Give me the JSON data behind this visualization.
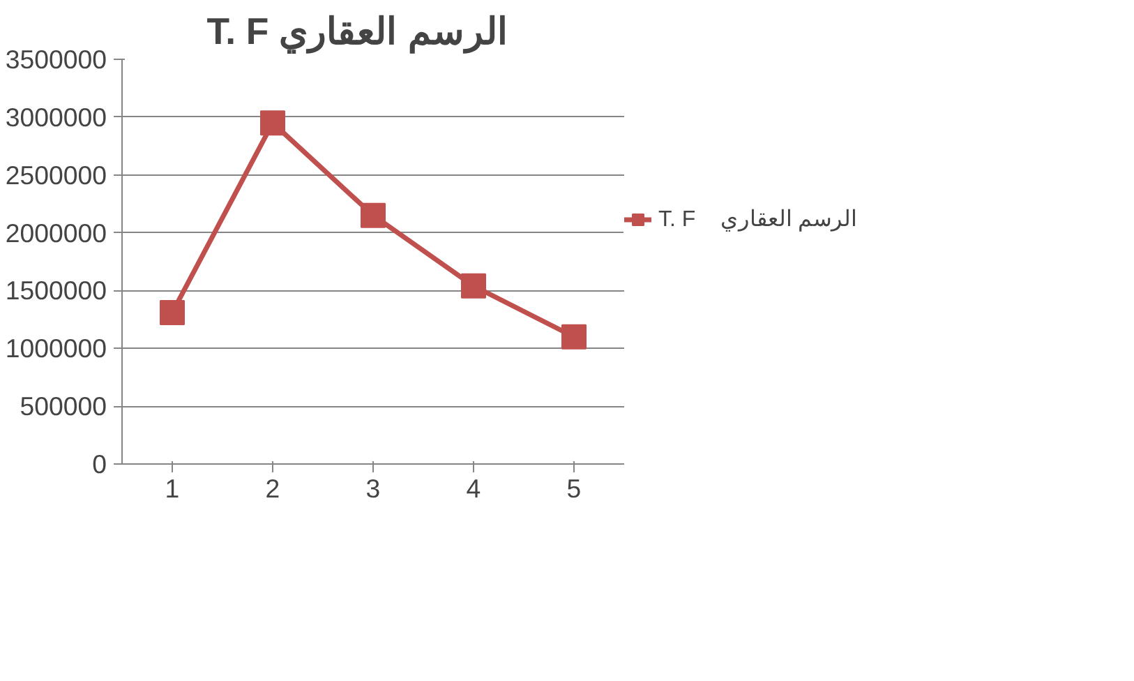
{
  "chart_data": {
    "type": "line",
    "title": "T. F    الرسم العقاري",
    "categories": [
      "1",
      "2",
      "3",
      "4",
      "5"
    ],
    "series": [
      {
        "name": "T. F    الرسم العقاري",
        "color": "#c0504d",
        "values": [
          1310000,
          2950000,
          2150000,
          1540000,
          1100000
        ]
      }
    ],
    "ylim": [
      0,
      3500000
    ],
    "yticks": [
      0,
      500000,
      1000000,
      1500000,
      2000000,
      2500000,
      3000000,
      3500000
    ],
    "grid": "y",
    "legend": "right",
    "marker": "square",
    "line_style": "solid"
  }
}
